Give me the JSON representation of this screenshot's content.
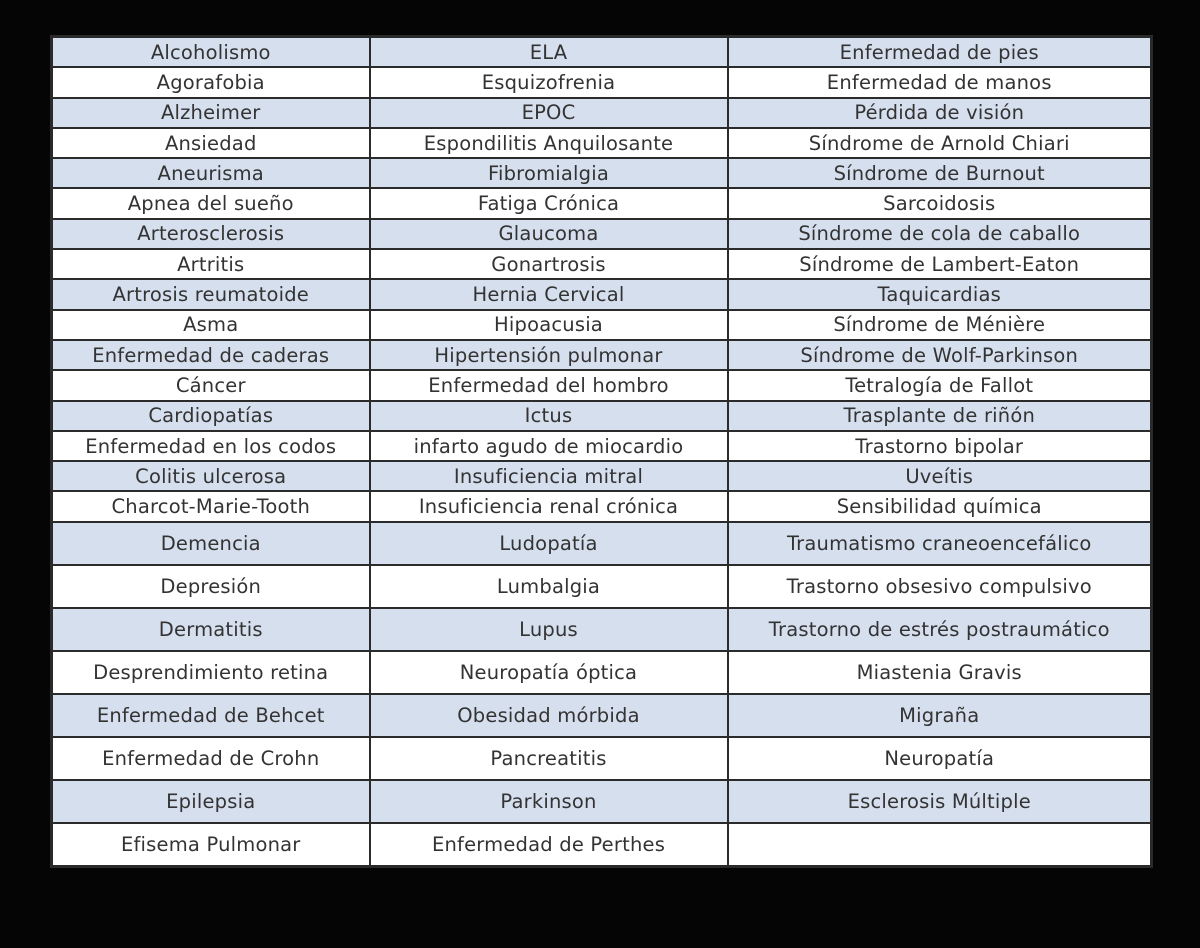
{
  "colors": {
    "band": "#d6dfee",
    "plain": "#ffffff",
    "text": "#333333",
    "border": "#2b2b2b",
    "background": "#050505"
  },
  "rows": [
    [
      "Alcoholismo",
      "ELA",
      "Enfermedad de pies"
    ],
    [
      "Agorafobia",
      "Esquizofrenia",
      "Enfermedad de manos"
    ],
    [
      "Alzheimer",
      "EPOC",
      "Pérdida de visión"
    ],
    [
      "Ansiedad",
      "Espondilitis Anquilosante",
      "Síndrome de Arnold Chiari"
    ],
    [
      "Aneurisma",
      "Fibromialgia",
      "Síndrome de Burnout"
    ],
    [
      "Apnea del sueño",
      "Fatiga Crónica",
      "Sarcoidosis"
    ],
    [
      "Arterosclerosis",
      "Glaucoma",
      "Síndrome de cola de caballo"
    ],
    [
      "Artritis",
      "Gonartrosis",
      "Síndrome de Lambert-Eaton"
    ],
    [
      "Artrosis reumatoide",
      "Hernia Cervical",
      "Taquicardias"
    ],
    [
      "Asma",
      "Hipoacusia",
      "Síndrome de Ménière"
    ],
    [
      "Enfermedad de caderas",
      "Hipertensión pulmonar",
      "Síndrome de Wolf-Parkinson"
    ],
    [
      "Cáncer",
      "Enfermedad del hombro",
      "Tetralogía de Fallot"
    ],
    [
      "Cardiopatías",
      "Ictus",
      "Trasplante de riñón"
    ],
    [
      "Enfermedad en los codos",
      "infarto agudo de miocardio",
      "Trastorno bipolar"
    ],
    [
      "Colitis ulcerosa",
      "Insuficiencia mitral",
      "Uveítis"
    ],
    [
      "Charcot-Marie-Tooth",
      "Insuficiencia renal crónica",
      "Sensibilidad química"
    ],
    [
      "Demencia",
      "Ludopatía",
      "Traumatismo craneoencefálico"
    ],
    [
      "Depresión",
      "Lumbalgia",
      "Trastorno obsesivo compulsivo"
    ],
    [
      "Dermatitis",
      "Lupus",
      "Trastorno de estrés postraumático"
    ],
    [
      "Desprendimiento  retina",
      "Neuropatía óptica",
      "Miastenia Gravis"
    ],
    [
      "Enfermedad de Behcet",
      "Obesidad mórbida",
      "Migraña"
    ],
    [
      "Enfermedad de Crohn",
      "Pancreatitis",
      "Neuropatía"
    ],
    [
      "Epilepsia",
      "Parkinson",
      "Esclerosis Múltiple"
    ],
    [
      "Efisema Pulmonar",
      "Enfermedad de Perthes",
      ""
    ]
  ]
}
